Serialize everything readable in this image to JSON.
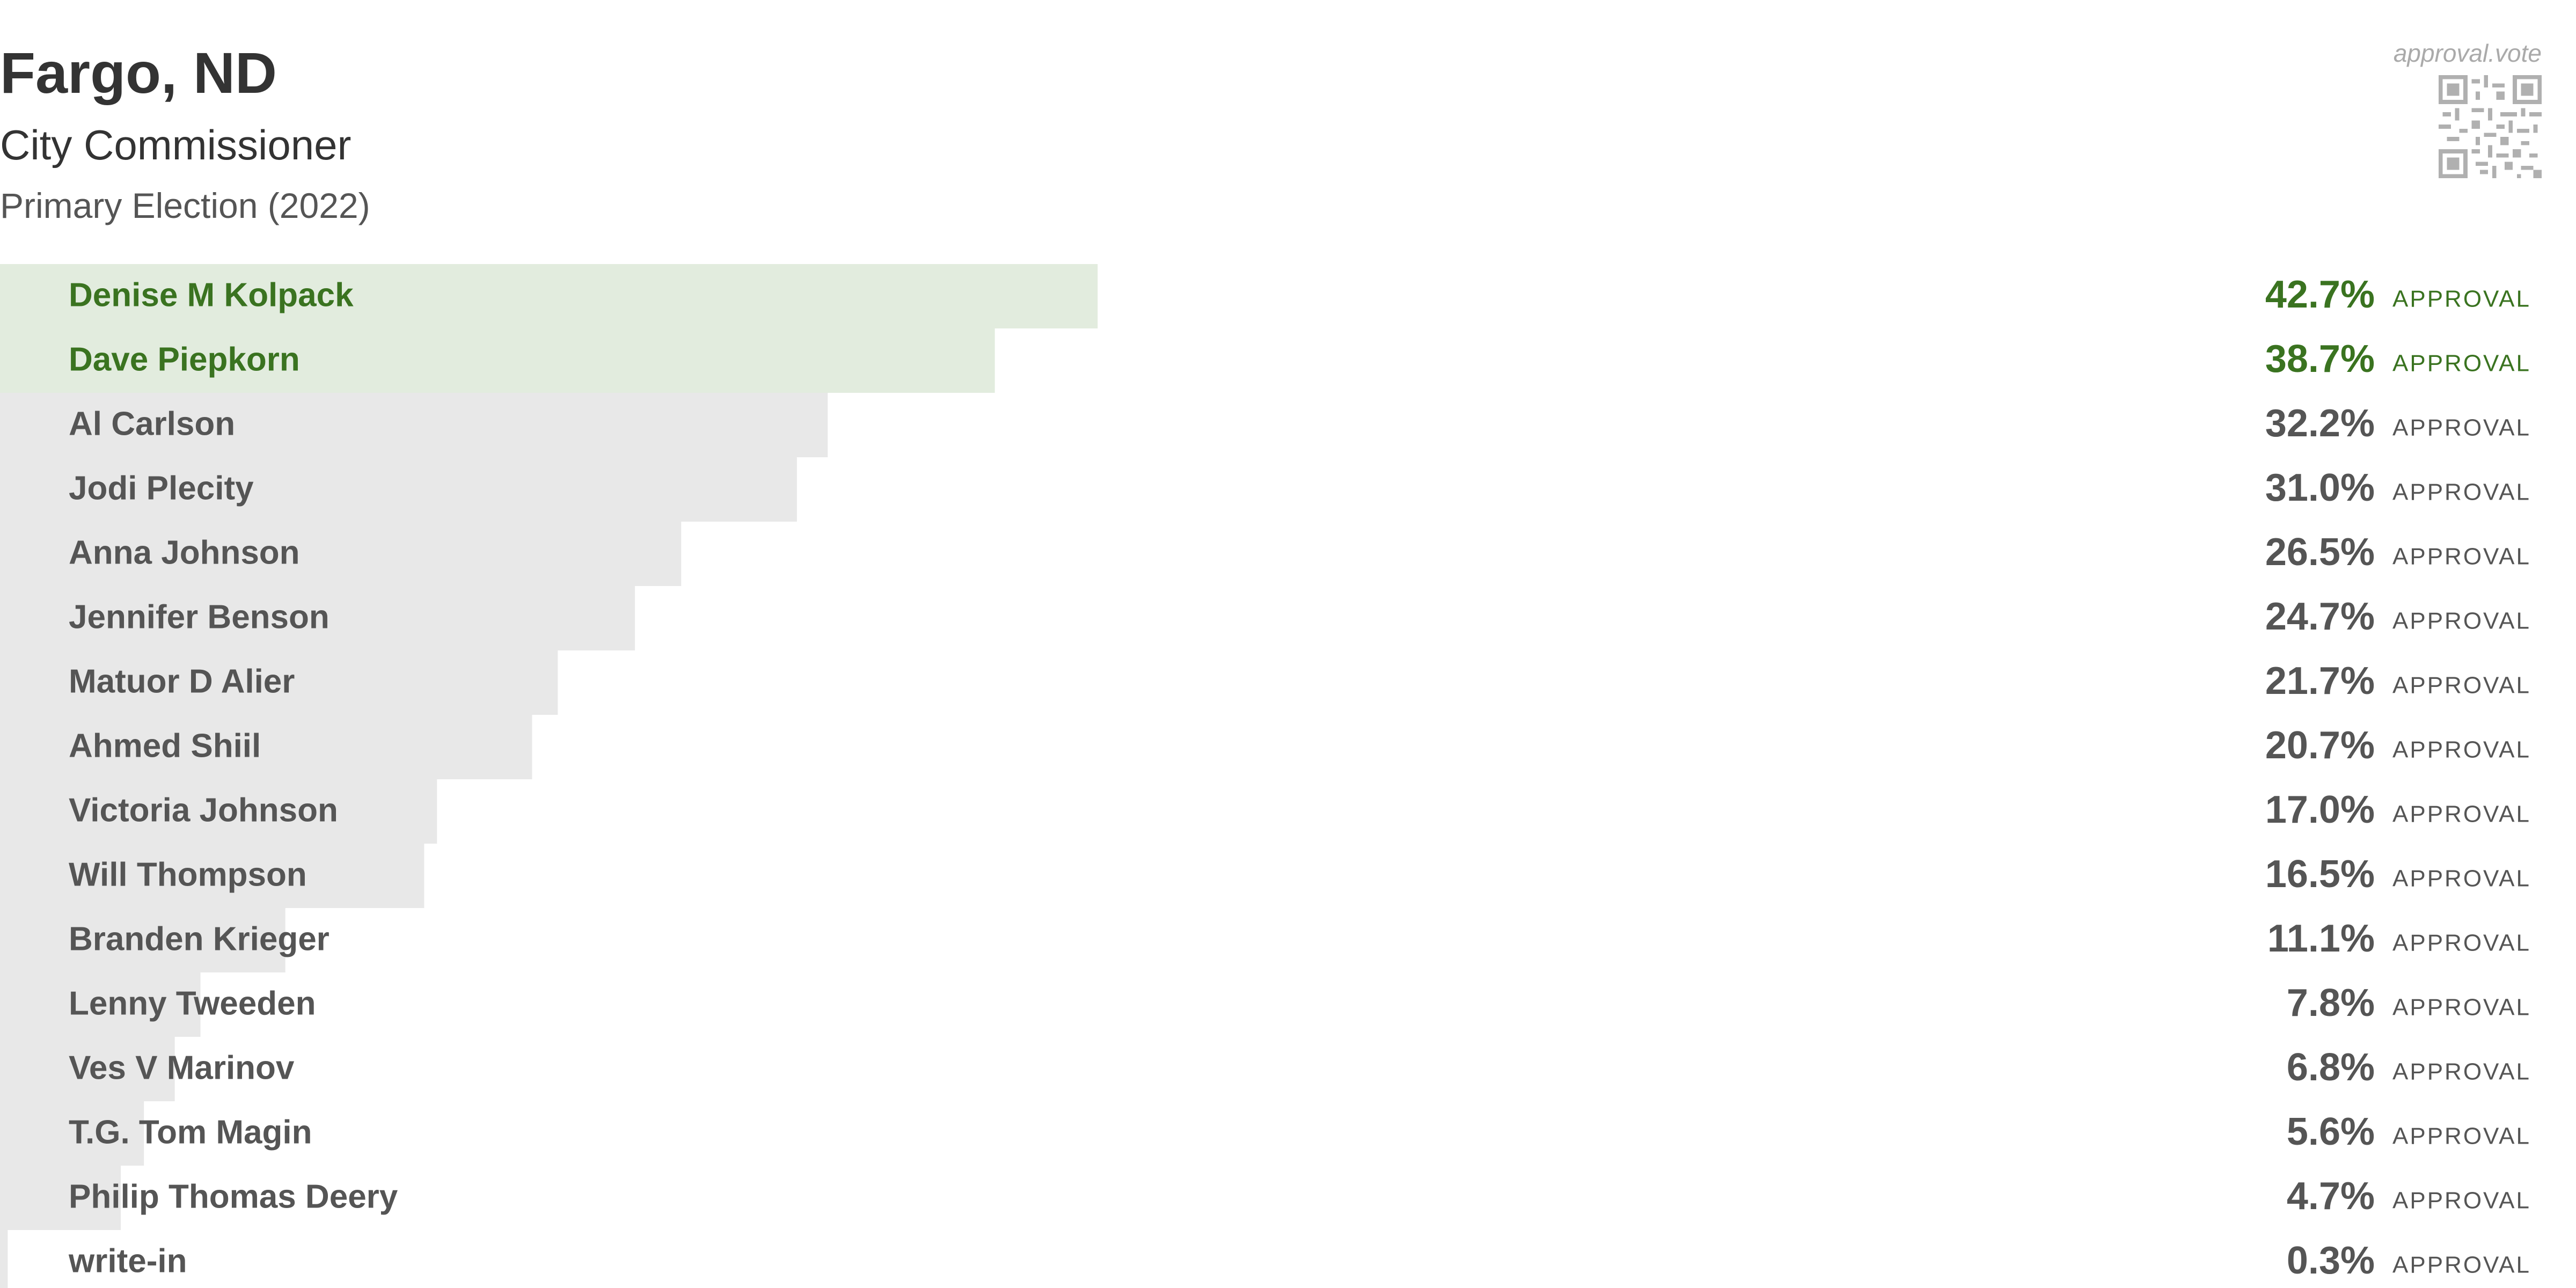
{
  "header": {
    "title": "Fargo, ND",
    "subtitle": "City Commissioner",
    "election": "Primary Election (2022)",
    "brand": "approval.vote",
    "qr_icon": "qr-code-icon"
  },
  "colors": {
    "winner_text": "#3a7320",
    "winner_bar": "#e2ecde",
    "other_text": "#555555",
    "other_bar": "#e8e8e8"
  },
  "chart_data": {
    "type": "bar",
    "orientation": "horizontal",
    "title": "Fargo, ND",
    "subtitle": "City Commissioner",
    "value_suffix": "%",
    "unit_label": "APPROVAL",
    "xlim": [
      0,
      100
    ],
    "categories": [
      "Denise M Kolpack",
      "Dave Piepkorn",
      "Al Carlson",
      "Jodi Plecity",
      "Anna Johnson",
      "Jennifer Benson",
      "Matuor D Alier",
      "Ahmed Shiil",
      "Victoria Johnson",
      "Will Thompson",
      "Branden Krieger",
      "Lenny Tweeden",
      "Ves V Marinov",
      "T.G. Tom Magin",
      "Philip Thomas Deery",
      "write-in"
    ],
    "values": [
      42.7,
      38.7,
      32.2,
      31.0,
      26.5,
      24.7,
      21.7,
      20.7,
      17.0,
      16.5,
      11.1,
      7.8,
      6.8,
      5.6,
      4.7,
      0.3
    ],
    "labels": [
      "42.7%",
      "38.7%",
      "32.2%",
      "31.0%",
      "26.5%",
      "24.7%",
      "21.7%",
      "20.7%",
      "17.0%",
      "16.5%",
      "11.1%",
      "7.8%",
      "6.8%",
      "5.6%",
      "4.7%",
      "0.3%"
    ],
    "winners": 2
  }
}
